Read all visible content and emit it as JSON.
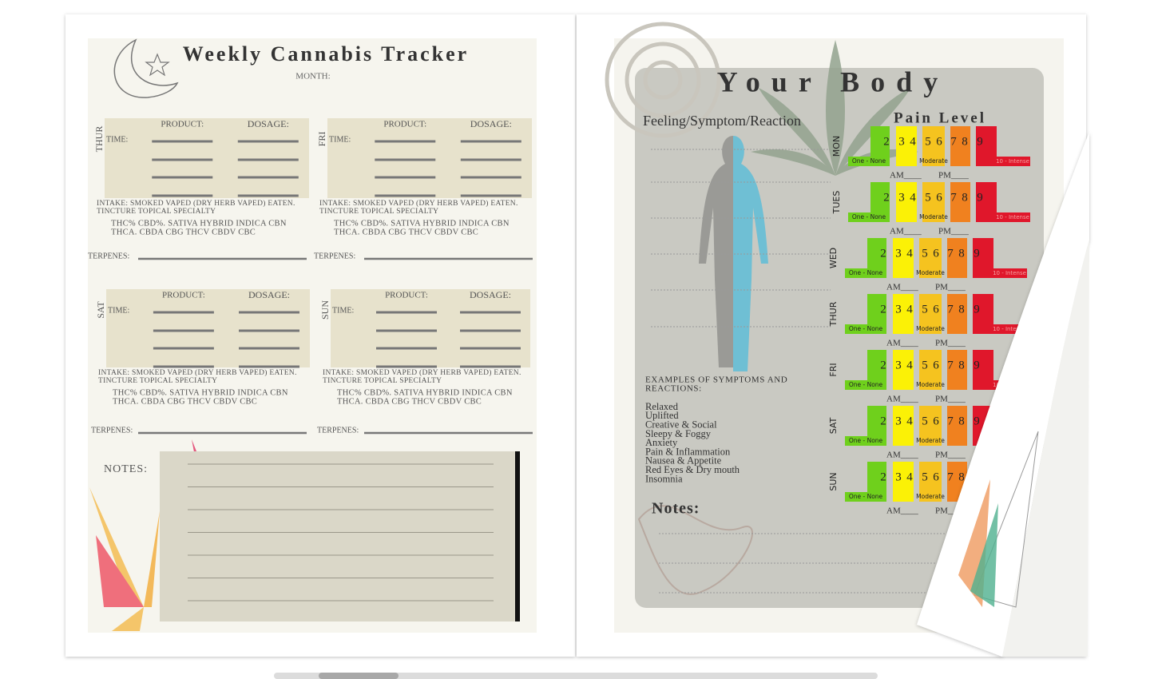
{
  "left_page": {
    "title": "Weekly Cannabis Tracker",
    "month_label": "MONTH:",
    "days": [
      "THUR",
      "FRI",
      "SAT",
      "SUN"
    ],
    "product_label": "PRODUCT:",
    "dosage_label": "DOSAGE:",
    "time_label": "TIME:",
    "intake_lines": [
      "INTAKE: SMOKED  VAPED    (DRY HERB VAPED) EATEN.",
      "TINCTURE     TOPICAL     SPECIALTY"
    ],
    "type_lines": [
      "THC%    CBD%.    SATIVA  HYBRID  INDICA  CBN",
      "THCA. CBDA CBG THCV CBDV CBC"
    ],
    "terpenes_label": "TERPENES:",
    "notes_label": "NOTES:"
  },
  "right_page": {
    "title": "Your Body",
    "feeling_label": "Feeling/Symptom/Reaction",
    "pain_label": "Pain Level",
    "days": [
      "MON",
      "TUES",
      "WED",
      "THUR",
      "FRI",
      "SAT",
      "SUN"
    ],
    "scale_numbers": [
      "2",
      "3",
      "4",
      "5",
      "6",
      "7",
      "8",
      "9"
    ],
    "low_label": "One - None",
    "mid_label": "Moderate",
    "high_label": "10 - Intense",
    "am_label": "AM____",
    "pm_label": "PM____",
    "examples_heading": [
      "EXAMPLES OF SYMPTOMS AND",
      "REACTIONS:"
    ],
    "examples": [
      "Relaxed",
      "Uplifted",
      "Creative & Social",
      "Sleepy & Foggy",
      "Anxiety",
      "Pain & Inflammation",
      "Nausea & Appetite",
      "Red Eyes & Dry mouth",
      "Insomnia"
    ],
    "notes_label": "Notes:"
  }
}
